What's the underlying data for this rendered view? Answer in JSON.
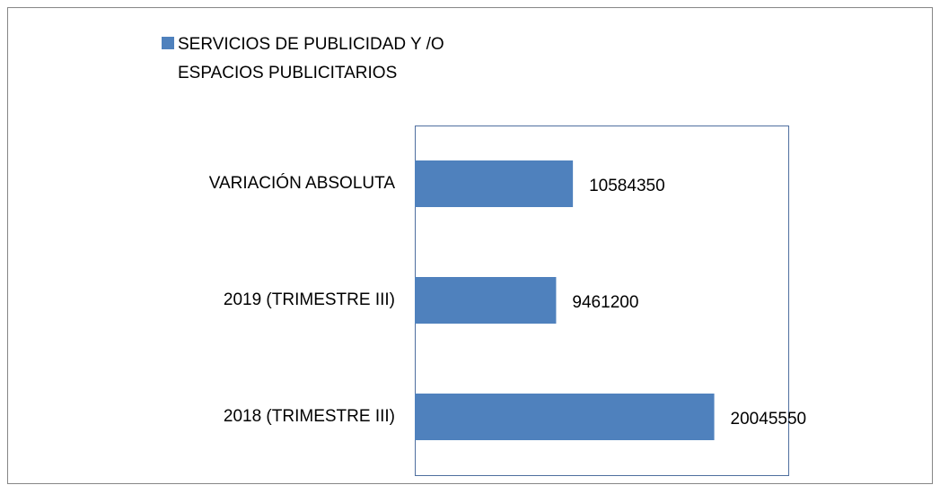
{
  "chart_data": {
    "type": "hbar",
    "categories": [
      "VARIACIÓN ABSOLUTA",
      "2019 (TRIMESTRE III)",
      "2018 (TRIMESTRE III)"
    ],
    "series": [
      {
        "name": "SERVICIOS DE PUBLICIDAD Y /O ESPACIOS PUBLICITARIOS",
        "color": "#4f81bd",
        "values": [
          10584350,
          9461200,
          20045550
        ]
      }
    ],
    "xlim": [
      0,
      25000000
    ],
    "legend": "top-left"
  }
}
